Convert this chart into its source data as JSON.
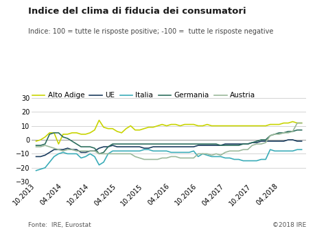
{
  "title": "Indice del clima di fiducia dei consumatori",
  "subtitle": "Indice: 100 = tutte le risposte positive; -100 =  tutte le risposte negative",
  "footer_left": "Fonte:  IRE, Eurostat",
  "footer_right": "©2018 IRE",
  "ylim": [
    -30,
    30
  ],
  "yticks": [
    -30,
    -20,
    -10,
    0,
    10,
    20,
    30
  ],
  "x_labels": [
    "10.2013",
    "04.2014",
    "10.2014",
    "04.2015",
    "10.2015",
    "04.2016",
    "10.2016",
    "04.2017",
    "10.2017",
    "04.2018"
  ],
  "x_tick_positions": [
    0,
    6,
    12,
    18,
    24,
    30,
    36,
    42,
    48,
    54
  ],
  "series": {
    "Alto Adige": {
      "color": "#c8d400",
      "linewidth": 1.2,
      "values": [
        -1,
        0,
        2,
        5,
        5,
        -3,
        4,
        4,
        5,
        5,
        4,
        4,
        5,
        7,
        14,
        9,
        8,
        8,
        6,
        5,
        8,
        10,
        7,
        7,
        8,
        9,
        9,
        10,
        11,
        10,
        11,
        11,
        10,
        11,
        11,
        11,
        10,
        10,
        11,
        10,
        10,
        10,
        10,
        10,
        10,
        10,
        10,
        10,
        10,
        10,
        10,
        10,
        11,
        11,
        11,
        12,
        12,
        13,
        12,
        12
      ]
    },
    "UE": {
      "color": "#1a3c5e",
      "linewidth": 1.2,
      "values": [
        -12,
        -12,
        -11,
        -9,
        -7,
        -7,
        -7,
        -6,
        -7,
        -7,
        -9,
        -9,
        -8,
        -8,
        -6,
        -5,
        -5,
        -4,
        -5,
        -5,
        -5,
        -5,
        -5,
        -5,
        -6,
        -6,
        -5,
        -5,
        -5,
        -5,
        -5,
        -5,
        -5,
        -5,
        -5,
        -5,
        -4,
        -4,
        -4,
        -4,
        -4,
        -4,
        -3,
        -3,
        -3,
        -3,
        -3,
        -3,
        -2,
        -2,
        -1,
        -1,
        -1,
        -1,
        -1,
        -1,
        0,
        0,
        -1,
        -1
      ]
    },
    "Italia": {
      "color": "#3aacb8",
      "linewidth": 1.2,
      "values": [
        -22,
        -21,
        -20,
        -16,
        -12,
        -10,
        -9,
        -10,
        -10,
        -10,
        -13,
        -12,
        -10,
        -12,
        -18,
        -16,
        -10,
        -8,
        -8,
        -8,
        -8,
        -8,
        -8,
        -8,
        -7,
        -7,
        -8,
        -8,
        -8,
        -8,
        -9,
        -9,
        -9,
        -9,
        -9,
        -8,
        -12,
        -10,
        -11,
        -12,
        -12,
        -12,
        -13,
        -13,
        -14,
        -14,
        -15,
        -15,
        -15,
        -15,
        -14,
        -14,
        -7,
        -8,
        -8,
        -8,
        -8,
        -8,
        -7,
        -7
      ]
    },
    "Germania": {
      "color": "#2d6e5e",
      "linewidth": 1.2,
      "values": [
        -4,
        -4,
        -3,
        4,
        5,
        5,
        2,
        1,
        -1,
        -3,
        -5,
        -5,
        -5,
        -6,
        -10,
        -9,
        -5,
        -3,
        -3,
        -3,
        -3,
        -3,
        -3,
        -3,
        -3,
        -3,
        -3,
        -3,
        -3,
        -3,
        -3,
        -3,
        -3,
        -3,
        -3,
        -3,
        -3,
        -3,
        -3,
        -3,
        -3,
        -4,
        -4,
        -4,
        -4,
        -4,
        -3,
        -3,
        -2,
        -1,
        0,
        0,
        3,
        4,
        5,
        5,
        6,
        6,
        7,
        7
      ]
    },
    "Austria": {
      "color": "#9ab89a",
      "linewidth": 1.2,
      "values": [
        -5,
        -5,
        -4,
        -5,
        -6,
        -7,
        -8,
        -7,
        -7,
        -8,
        -8,
        -8,
        -8,
        -8,
        -10,
        -10,
        -10,
        -10,
        -10,
        -10,
        -10,
        -10,
        -12,
        -13,
        -14,
        -14,
        -14,
        -14,
        -13,
        -13,
        -12,
        -12,
        -13,
        -13,
        -13,
        -13,
        -10,
        -10,
        -10,
        -11,
        -10,
        -11,
        -9,
        -8,
        -8,
        -8,
        -7,
        -7,
        -4,
        -3,
        -3,
        -2,
        3,
        4,
        4,
        5,
        5,
        6,
        12,
        12
      ]
    }
  },
  "n_points": 60,
  "background_color": "#ffffff",
  "grid_color": "#cccccc",
  "title_fontsize": 9.5,
  "subtitle_fontsize": 7,
  "axis_fontsize": 7,
  "legend_fontsize": 7.5,
  "footer_fontsize": 6.5
}
